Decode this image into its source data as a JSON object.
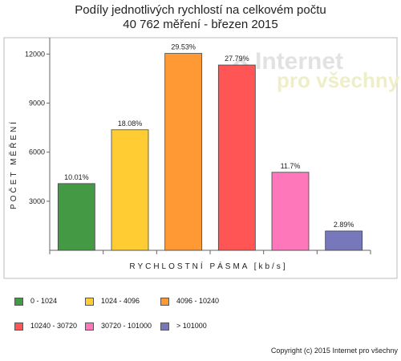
{
  "chart_data": {
    "type": "bar",
    "title": "Podíly jednotlivých rychlostí na celkovém počtu",
    "subtitle": "40 762 měření - březen 2015",
    "xlabel": "RYCHLOSTNÍ PÁSMA [kb/s]",
    "ylabel": "POČET MĚŘENÍ",
    "ylim": [
      0,
      13000
    ],
    "yticks": [
      3000,
      6000,
      9000,
      12000
    ],
    "grid": false,
    "legend_position": "bottom",
    "categories": [
      "0 - 1024",
      "1024 - 4096",
      "4096 - 10240",
      "10240 - 30720",
      "30720 - 101000",
      "> 101000"
    ],
    "values": [
      4080,
      7370,
      12040,
      11330,
      4770,
      1180
    ],
    "data_labels": [
      "10.01%",
      "18.08%",
      "29.53%",
      "27.79%",
      "11.7%",
      "2.89%"
    ],
    "colors": [
      "#449944",
      "#ffcc33",
      "#ff9933",
      "#ff5555",
      "#ff77bb",
      "#7777bb"
    ]
  },
  "watermark": {
    "brand": "Internet",
    "tagline": "pro všechny"
  },
  "copyright": "Copyright (c) 2015 Internet pro všechny"
}
